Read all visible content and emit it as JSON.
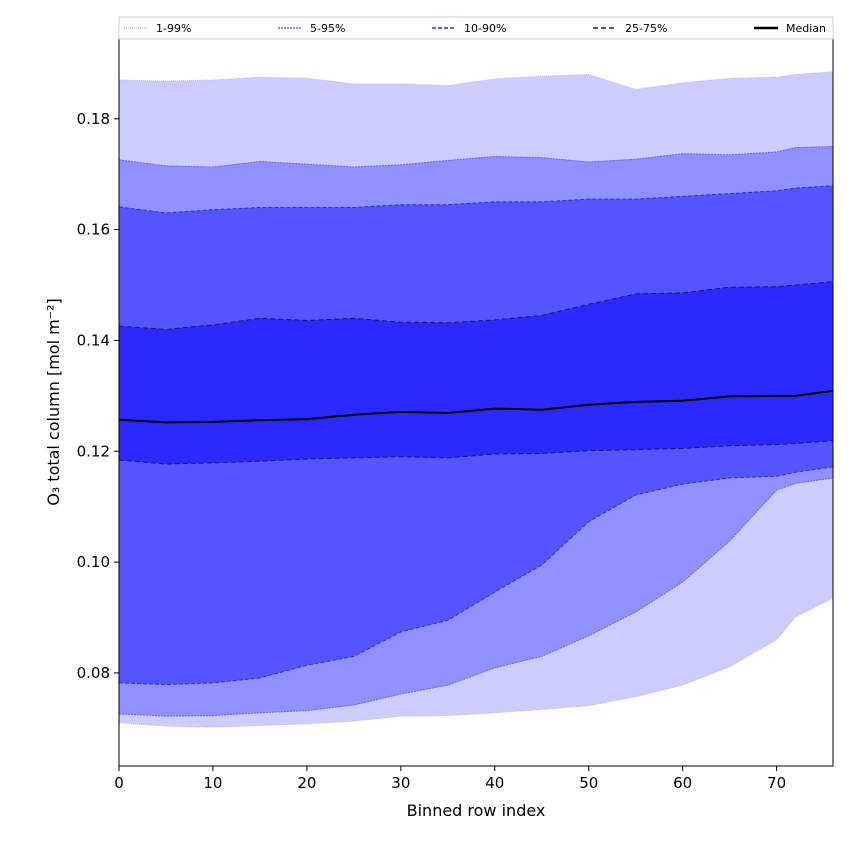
{
  "chart_data": {
    "type": "area",
    "title": "",
    "xlabel": "Binned row index",
    "ylabel": "O₃ total column [mol m⁻²]",
    "xlim": [
      0,
      76
    ],
    "ylim": [
      0.0632,
      0.1944
    ],
    "xticks": [
      "0",
      "10",
      "20",
      "30",
      "40",
      "50",
      "60",
      "70"
    ],
    "yticks": [
      "0.08",
      "0.10",
      "0.12",
      "0.14",
      "0.16",
      "0.18"
    ],
    "legend_placement": "top",
    "x": [
      0,
      5,
      10,
      15,
      20,
      25,
      30,
      35,
      40,
      45,
      50,
      55,
      60,
      65,
      70,
      72,
      76
    ],
    "bands": [
      {
        "name": "1-99%",
        "color": "#ccccff",
        "line": "#b8b8ff",
        "lower": [
          0.071,
          0.0704,
          0.0702,
          0.0705,
          0.0708,
          0.0713,
          0.0722,
          0.0723,
          0.0728,
          0.0734,
          0.0741,
          0.0757,
          0.0778,
          0.0811,
          0.086,
          0.0901,
          0.0935
        ],
        "upper": [
          0.187,
          0.1868,
          0.187,
          0.1875,
          0.1873,
          0.1863,
          0.1863,
          0.186,
          0.1872,
          0.1877,
          0.188,
          0.1853,
          0.1865,
          0.1873,
          0.1875,
          0.188,
          0.1885
        ]
      },
      {
        "name": "5-95%",
        "color": "#9090ff",
        "line": "#6666ee",
        "lower": [
          0.0726,
          0.0722,
          0.0723,
          0.0728,
          0.0732,
          0.0742,
          0.0762,
          0.0778,
          0.0809,
          0.083,
          0.0867,
          0.091,
          0.0964,
          0.1038,
          0.113,
          0.1142,
          0.1152
        ],
        "upper": [
          0.1726,
          0.1715,
          0.1713,
          0.1723,
          0.1718,
          0.1713,
          0.1717,
          0.1725,
          0.1732,
          0.173,
          0.1722,
          0.1727,
          0.1737,
          0.1735,
          0.174,
          0.1748,
          0.175
        ]
      },
      {
        "name": "10-90%",
        "color": "#5555ff",
        "line": "#3333bb",
        "lower": [
          0.0782,
          0.0779,
          0.0782,
          0.0791,
          0.0814,
          0.083,
          0.0874,
          0.0895,
          0.0946,
          0.0995,
          0.1073,
          0.1121,
          0.1141,
          0.1152,
          0.1155,
          0.1162,
          0.1172
        ],
        "upper": [
          0.1641,
          0.163,
          0.1636,
          0.164,
          0.164,
          0.164,
          0.1645,
          0.1645,
          0.165,
          0.165,
          0.1655,
          0.1655,
          0.166,
          0.1665,
          0.167,
          0.1675,
          0.1679
        ]
      },
      {
        "name": "25-75%",
        "color": "#2a2aff",
        "line": "#1a1a66",
        "lower": [
          0.1184,
          0.1177,
          0.1179,
          0.1182,
          0.1186,
          0.1188,
          0.119,
          0.1188,
          0.1195,
          0.1196,
          0.1201,
          0.1203,
          0.1205,
          0.121,
          0.1212,
          0.1214,
          0.1219
        ],
        "upper": [
          0.1426,
          0.142,
          0.1428,
          0.144,
          0.1436,
          0.144,
          0.1433,
          0.1432,
          0.1437,
          0.1445,
          0.1465,
          0.1484,
          0.1486,
          0.1496,
          0.1497,
          0.15,
          0.1506
        ]
      }
    ],
    "median": {
      "name": "Median",
      "color": "#000000",
      "values": [
        0.1257,
        0.1252,
        0.1253,
        0.1256,
        0.1258,
        0.1266,
        0.1271,
        0.1269,
        0.1277,
        0.1275,
        0.1284,
        0.1289,
        0.1291,
        0.1299,
        0.13,
        0.13,
        0.1309
      ]
    }
  }
}
